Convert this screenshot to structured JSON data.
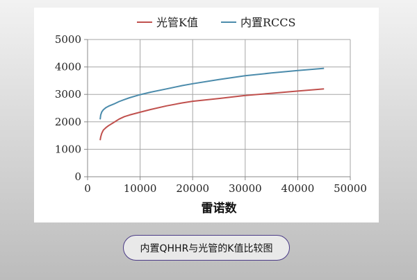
{
  "caption": "内置QHHR与光管的K值比较图",
  "chart_data": {
    "type": "line",
    "title": "",
    "xlabel": "雷诺数",
    "ylabel": "",
    "xlim": [
      0,
      50000
    ],
    "ylim": [
      0,
      5000
    ],
    "xticks": [
      0,
      10000,
      20000,
      30000,
      40000,
      50000
    ],
    "yticks": [
      0,
      1000,
      2000,
      3000,
      4000,
      5000
    ],
    "grid": true,
    "legend_position": "top",
    "series": [
      {
        "name": "光管K值",
        "color": "#c0504d",
        "x": [
          2400,
          2500,
          2700,
          3000,
          3500,
          4000,
          5000,
          6000,
          7000,
          8000,
          10000,
          12000,
          15000,
          18000,
          20000,
          25000,
          30000,
          35000,
          40000,
          45000
        ],
        "y": [
          1330,
          1450,
          1580,
          1700,
          1790,
          1860,
          1980,
          2100,
          2190,
          2250,
          2350,
          2450,
          2580,
          2690,
          2750,
          2850,
          2960,
          3040,
          3120,
          3200
        ]
      },
      {
        "name": "内置RCCS",
        "color": "#4b8bab",
        "x": [
          2400,
          2500,
          2700,
          3000,
          3500,
          4000,
          5000,
          6000,
          7000,
          8000,
          10000,
          12000,
          15000,
          18000,
          20000,
          25000,
          30000,
          35000,
          40000,
          45000
        ],
        "y": [
          2090,
          2250,
          2360,
          2440,
          2520,
          2570,
          2650,
          2740,
          2810,
          2880,
          2990,
          3080,
          3200,
          3320,
          3390,
          3540,
          3680,
          3780,
          3870,
          3950
        ]
      }
    ]
  }
}
